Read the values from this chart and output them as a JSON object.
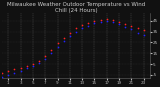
{
  "title": "Milwaukee Weather Outdoor Temperature vs Wind Chill (24 Hours)",
  "bg_color": "#111111",
  "plot_bg_color": "#111111",
  "grid_color": "#555555",
  "temp_color": "#ff2222",
  "windchill_color": "#2222ff",
  "title_color": "#cccccc",
  "tick_color": "#bbbbbb",
  "spine_color": "#666666",
  "hours": [
    0,
    1,
    2,
    3,
    4,
    5,
    6,
    7,
    8,
    9,
    10,
    11,
    12,
    13,
    14,
    15,
    16,
    17,
    18,
    19,
    20,
    21,
    22,
    23
  ],
  "temp": [
    -3,
    -1,
    0,
    1,
    3,
    5,
    8,
    12,
    18,
    24,
    29,
    34,
    38,
    41,
    43,
    45,
    46,
    47,
    46,
    44,
    42,
    40,
    38,
    36
  ],
  "windchill": [
    -7,
    -5,
    -3,
    -1,
    1,
    3,
    6,
    10,
    15,
    21,
    26,
    31,
    35,
    38,
    40,
    43,
    44,
    45,
    44,
    42,
    39,
    37,
    34,
    32
  ],
  "ylim": [
    -8,
    52
  ],
  "yticks": [
    -5,
    5,
    15,
    25,
    35,
    45
  ],
  "ytick_labels": [
    "-5",
    "5",
    "15",
    "25",
    "35",
    "45"
  ],
  "xticks": [
    1,
    3,
    5,
    7,
    9,
    11,
    13,
    15,
    17,
    19,
    21,
    23
  ],
  "xtick_labels": [
    "1",
    "3",
    "5",
    "7",
    "9",
    "11",
    "13",
    "15",
    "17",
    "19",
    "21",
    "23"
  ],
  "title_fontsize": 4.0,
  "tick_fontsize": 3.0,
  "marker_size": 1.5
}
